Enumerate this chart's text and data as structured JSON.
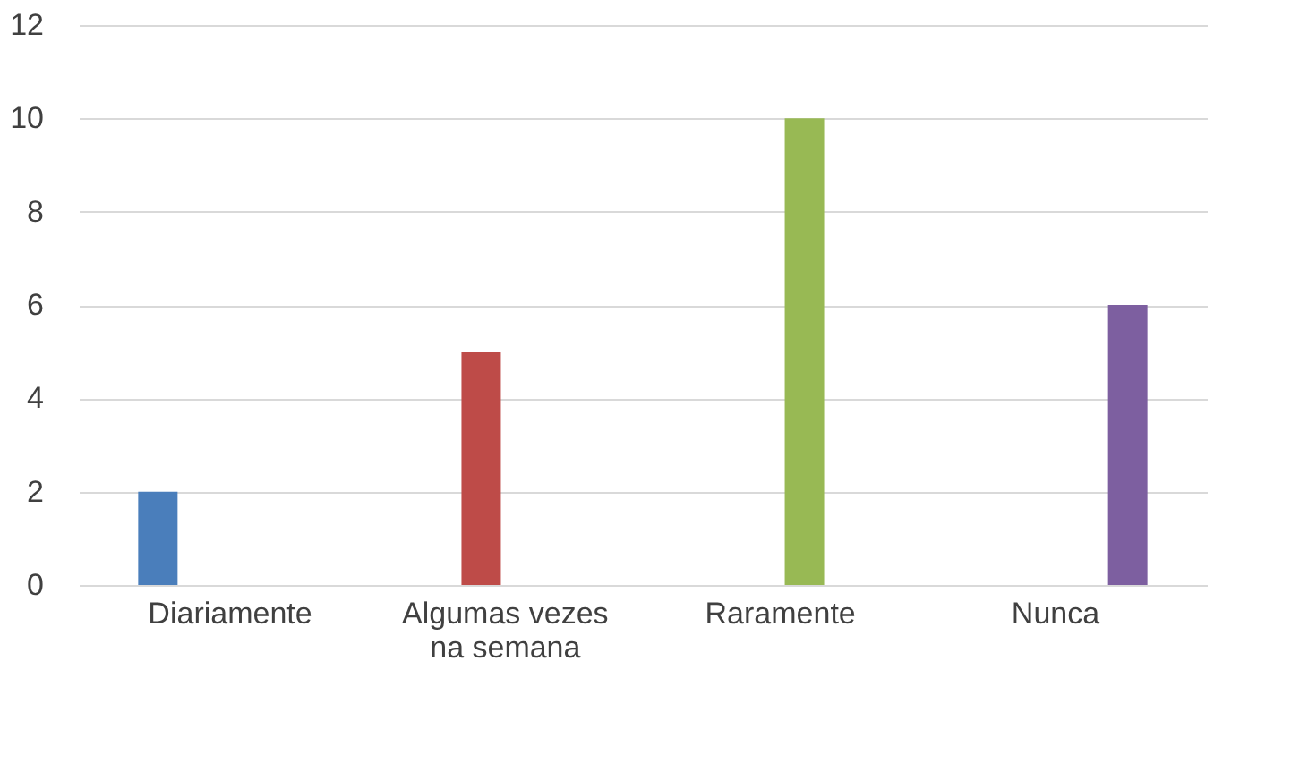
{
  "chart_data": {
    "type": "bar",
    "categories": [
      "Diariamente",
      "Algumas vezes na semana",
      "Raramente",
      "Nunca"
    ],
    "series": [
      {
        "color": "#4a7ebb",
        "values": [
          2,
          null,
          null,
          null
        ]
      },
      {
        "color": "#be4b48",
        "values": [
          null,
          5,
          null,
          null
        ]
      },
      {
        "color": "#98b954",
        "values": [
          null,
          null,
          10,
          null
        ]
      },
      {
        "color": "#7d5fa0",
        "values": [
          null,
          null,
          null,
          6
        ]
      }
    ],
    "ylim": [
      0,
      12
    ],
    "yticks": [
      0,
      2,
      4,
      6,
      8,
      10,
      12
    ],
    "grid": "y",
    "legend": false
  }
}
